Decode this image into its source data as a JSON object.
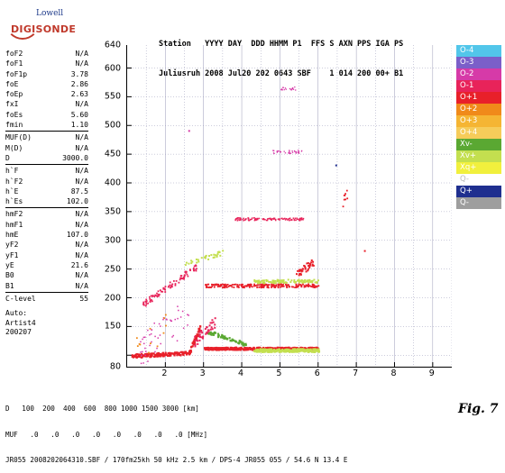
{
  "logo": {
    "top": "Lowell",
    "name": "DIGISONDE"
  },
  "header": {
    "line1": "Station   YYYY DAY  DDD HHMM P1  FFS S AXN PPS IGA PS",
    "line2": "Juliusruh 2008 Jul20 202 0643 SBF    1 014 200 00+ B1"
  },
  "params": [
    {
      "name": "foF2",
      "value": "N/A"
    },
    {
      "name": "foF1",
      "value": "N/A"
    },
    {
      "name": "foF1p",
      "value": "3.78"
    },
    {
      "name": "foE",
      "value": "2.86"
    },
    {
      "name": "foEp",
      "value": "2.63"
    },
    {
      "name": "fxI",
      "value": "N/A"
    },
    {
      "name": "foEs",
      "value": "5.60"
    },
    {
      "name": "fmin",
      "value": "1.10"
    },
    {
      "name": "MUF(D)",
      "value": "N/A"
    },
    {
      "name": "M(D)",
      "value": "N/A"
    },
    {
      "name": "D",
      "value": "3000.0"
    },
    {
      "name": "h`F",
      "value": "N/A"
    },
    {
      "name": "h`F2",
      "value": "N/A"
    },
    {
      "name": "h`E",
      "value": "87.5"
    },
    {
      "name": "h`Es",
      "value": "102.0"
    },
    {
      "name": "hmF2",
      "value": "N/A"
    },
    {
      "name": "hmF1",
      "value": "N/A"
    },
    {
      "name": "hmE",
      "value": "107.0"
    },
    {
      "name": "yF2",
      "value": "N/A"
    },
    {
      "name": "yF1",
      "value": "N/A"
    },
    {
      "name": "yE",
      "value": "21.6"
    },
    {
      "name": "B0",
      "value": "N/A"
    },
    {
      "name": "B1",
      "value": "N/A"
    },
    {
      "name": "C-level",
      "value": "55"
    }
  ],
  "auto": {
    "line1": "Auto:",
    "line2": "Artist4",
    "line3": "200207"
  },
  "axes": {
    "y_ticks": [
      "640",
      "600",
      "550",
      "500",
      "450",
      "400",
      "350",
      "300",
      "250",
      "200",
      "150",
      "80"
    ],
    "x_ticks": [
      "2",
      "3",
      "4",
      "5",
      "6",
      "7",
      "8",
      "9"
    ],
    "ylim": [
      80,
      640
    ],
    "xlim": [
      1,
      9.5
    ]
  },
  "legend": [
    {
      "label": "O-4",
      "color": "#52c6ea"
    },
    {
      "label": "O-3",
      "color": "#7b5fc9"
    },
    {
      "label": "O-2",
      "color": "#d63aa8"
    },
    {
      "label": "O-1",
      "color": "#e8235a"
    },
    {
      "label": "O+1",
      "color": "#e8202a"
    },
    {
      "label": "O+2",
      "color": "#f08a1a"
    },
    {
      "label": "O+3",
      "color": "#f5b533"
    },
    {
      "label": "O+4",
      "color": "#f6cc5a"
    },
    {
      "label": "Xv-",
      "color": "#5aa832"
    },
    {
      "label": "Xv+",
      "color": "#c3df4f"
    },
    {
      "label": "Xq+",
      "color": "#f1f03d"
    },
    {
      "label": "Q-",
      "color": "#ffffff"
    },
    {
      "label": "Q+",
      "color": "#1f2f8f"
    },
    {
      "label": "Q-",
      "color": "#9e9e9e"
    }
  ],
  "footer": {
    "line1": "D   100  200  400  600  800 1000 1500 3000 [km]",
    "line2": "MUF   .0   .0   .0   .0   .0   .0   .0   .0 [MHz]",
    "line3": "JR055 2008202064310.SBF / 170fm25kh 50 kHz 2.5 km / DPS-4 JR055 055 / 54.6 N 13.4 E"
  },
  "figure_label": "Fig. 7"
}
